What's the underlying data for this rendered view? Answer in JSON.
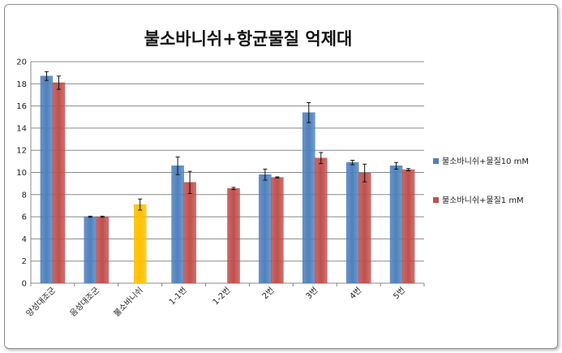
{
  "chart_data": {
    "type": "bar",
    "title": "불소바니쉬+항균물질 억제대",
    "categories": [
      "양성대조군",
      "음성대조군",
      "불소바니쉬",
      "1-1번",
      "1-2번",
      "2번",
      "3번",
      "4번",
      "5번"
    ],
    "series": [
      {
        "name": "불소바니쉬+물질10 mM",
        "color": "#4f81bd",
        "values": [
          18.7,
          6.0,
          null,
          10.6,
          null,
          9.8,
          15.4,
          10.9,
          10.6
        ],
        "errors": [
          0.4,
          0.05,
          null,
          0.8,
          null,
          0.5,
          0.9,
          0.2,
          0.3
        ]
      },
      {
        "name": "불소바니쉬+물질1 mM",
        "color": "#c0504d",
        "values": [
          18.1,
          6.0,
          null,
          9.1,
          8.55,
          9.55,
          11.3,
          9.95,
          10.25
        ],
        "errors": [
          0.6,
          0.05,
          null,
          1.0,
          0.1,
          0.05,
          0.5,
          0.8,
          0.1
        ]
      },
      {
        "name": "",
        "color": "#ffc000",
        "values": [
          null,
          null,
          7.1,
          null,
          null,
          null,
          null,
          null,
          null
        ],
        "errors": [
          null,
          null,
          0.5,
          null,
          null,
          null,
          null,
          null,
          null
        ]
      }
    ],
    "ylim": [
      0,
      20
    ],
    "yticks": [
      0,
      2,
      4,
      6,
      8,
      10,
      12,
      14,
      16,
      18,
      20
    ],
    "grid": true,
    "legend": "right",
    "xlabel": "",
    "ylabel": ""
  }
}
